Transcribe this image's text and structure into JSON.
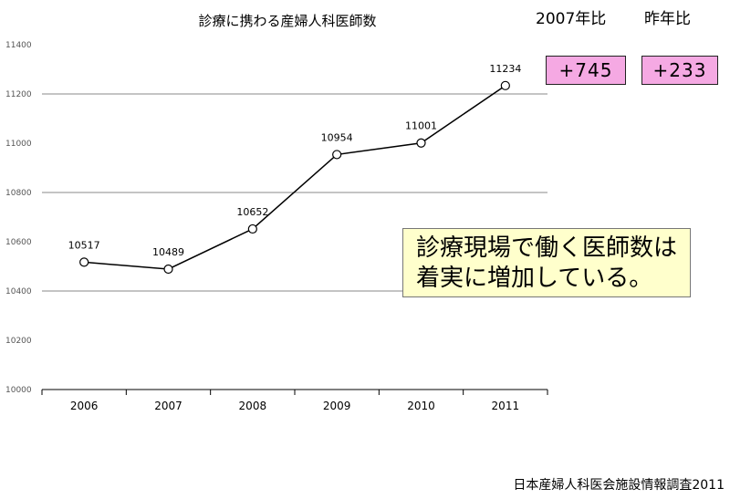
{
  "chart_data": {
    "type": "line",
    "title": "診療に携わる産婦人科医師数",
    "categories": [
      "2006",
      "2007",
      "2008",
      "2009",
      "2010",
      "2011"
    ],
    "values": [
      10517,
      10489,
      10652,
      10954,
      11001,
      11234
    ],
    "y_tick_labels": [
      "11400",
      "11200",
      "11000",
      "10800",
      "10600",
      "10400",
      "10200",
      "10000"
    ],
    "ylim": [
      10000,
      11400
    ],
    "grid": true
  },
  "comparisons": [
    {
      "label": "2007年比",
      "value": "+745",
      "color": "#f5a9e3"
    },
    {
      "label": "昨年比",
      "value": "+233",
      "color": "#f5a9e3"
    }
  ],
  "callout": {
    "lines": [
      "診療現場で働く医師数は",
      "着実に増加している。"
    ],
    "color": "#ffffcc"
  },
  "source": "日本産婦人科医会施設情報調査2011"
}
